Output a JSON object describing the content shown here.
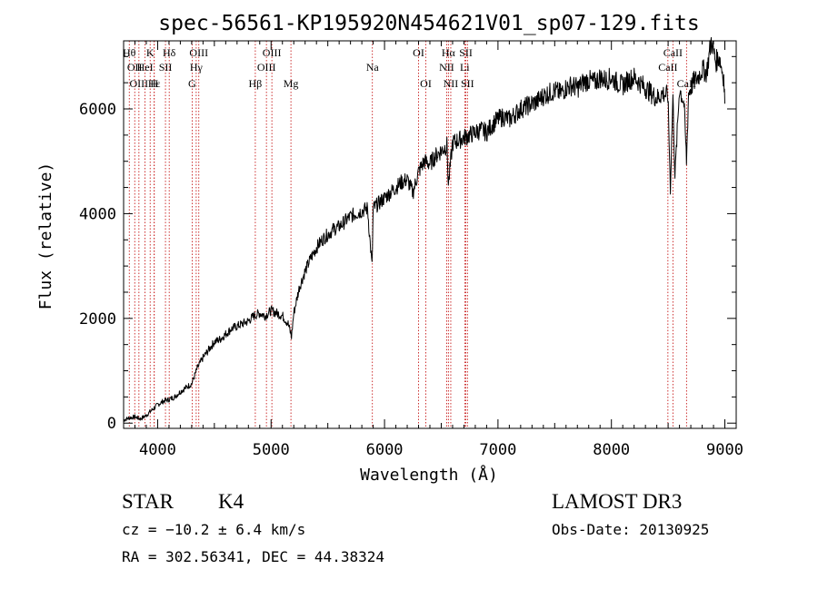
{
  "chart_data": {
    "type": "line",
    "title": "spec-56561-KP195920N454621V01_sp07-129.fits",
    "xlabel": "Wavelength (Å)",
    "ylabel": "Flux (relative)",
    "xlim": [
      3700,
      9100
    ],
    "ylim": [
      -100,
      7300
    ],
    "xticks": [
      4000,
      5000,
      6000,
      7000,
      8000,
      9000
    ],
    "xtick_labels": [
      "4000",
      "5000",
      "6000",
      "7000",
      "8000",
      "9000"
    ],
    "yticks": [
      0,
      2000,
      4000,
      6000
    ],
    "ytick_labels": [
      "0",
      "2000",
      "4000",
      "6000"
    ],
    "grid": false,
    "series": [
      {
        "name": "flux",
        "x": [
          3700,
          3750,
          3800,
          3850,
          3900,
          3950,
          4000,
          4050,
          4100,
          4150,
          4200,
          4250,
          4300,
          4350,
          4400,
          4450,
          4500,
          4550,
          4600,
          4650,
          4700,
          4750,
          4800,
          4850,
          4900,
          4950,
          5000,
          5050,
          5100,
          5150,
          5180,
          5200,
          5250,
          5300,
          5350,
          5400,
          5450,
          5500,
          5550,
          5600,
          5650,
          5700,
          5750,
          5800,
          5850,
          5890,
          5900,
          5950,
          6000,
          6050,
          6100,
          6150,
          6200,
          6250,
          6300,
          6350,
          6400,
          6450,
          6500,
          6550,
          6563,
          6600,
          6650,
          6700,
          6750,
          6800,
          6850,
          6900,
          6950,
          7000,
          7050,
          7100,
          7150,
          7200,
          7250,
          7300,
          7350,
          7400,
          7450,
          7500,
          7550,
          7600,
          7650,
          7700,
          7750,
          7800,
          7850,
          7900,
          7950,
          8000,
          8050,
          8100,
          8150,
          8200,
          8250,
          8300,
          8350,
          8400,
          8450,
          8498,
          8520,
          8542,
          8560,
          8600,
          8640,
          8662,
          8680,
          8720,
          8760,
          8800,
          8840,
          8880,
          8920,
          8950,
          8970,
          8990,
          9000
        ],
        "y": [
          60,
          100,
          120,
          80,
          150,
          250,
          350,
          420,
          450,
          500,
          600,
          680,
          750,
          1050,
          1250,
          1400,
          1550,
          1600,
          1700,
          1800,
          1850,
          1900,
          1950,
          2050,
          2100,
          2050,
          2150,
          2100,
          2050,
          1900,
          1650,
          2100,
          2600,
          2900,
          3150,
          3350,
          3500,
          3600,
          3700,
          3750,
          3850,
          3950,
          4000,
          4050,
          4100,
          3000,
          4100,
          4200,
          4300,
          4400,
          4500,
          4600,
          4650,
          4400,
          4800,
          5000,
          4950,
          5100,
          5200,
          5300,
          4550,
          5350,
          5400,
          5450,
          5500,
          5550,
          5600,
          5550,
          5700,
          5800,
          5850,
          5800,
          5900,
          6000,
          6050,
          6100,
          6150,
          6250,
          6300,
          6350,
          6300,
          6400,
          6450,
          6400,
          6500,
          6550,
          6500,
          6600,
          6550,
          6600,
          6500,
          6450,
          6550,
          6600,
          6500,
          6400,
          6300,
          6200,
          6300,
          6250,
          4500,
          6250,
          4700,
          6400,
          6100,
          5000,
          6300,
          6500,
          6600,
          6750,
          6700,
          7300,
          6900,
          7000,
          6800,
          6600,
          6100
        ]
      }
    ],
    "lines": [
      {
        "x": 3750,
        "label": "Hθ",
        "row": 0
      },
      {
        "x": 3798,
        "label": "OII",
        "row": 1
      },
      {
        "x": 3835,
        "label": "OIII",
        "row": 2
      },
      {
        "x": 3889,
        "label": "HeI",
        "row": 1
      },
      {
        "x": 3934,
        "label": "K",
        "row": 0
      },
      {
        "x": 3970,
        "label": "Hε",
        "row": 2
      },
      {
        "x": 3970,
        "label": "H",
        "row": 2
      },
      {
        "x": 4069,
        "label": "SII",
        "row": 1
      },
      {
        "x": 4102,
        "label": "Hδ",
        "row": 0
      },
      {
        "x": 4304,
        "label": "G",
        "row": 2
      },
      {
        "x": 4340,
        "label": "Hγ",
        "row": 1
      },
      {
        "x": 4363,
        "label": "OIII",
        "row": 0
      },
      {
        "x": 4861,
        "label": "Hβ",
        "row": 2
      },
      {
        "x": 4959,
        "label": "OIII",
        "row": 1
      },
      {
        "x": 5007,
        "label": "OIII",
        "row": 0
      },
      {
        "x": 5175,
        "label": "Mg",
        "row": 2
      },
      {
        "x": 5893,
        "label": "Na",
        "row": 1
      },
      {
        "x": 6300,
        "label": "OI",
        "row": 0
      },
      {
        "x": 6364,
        "label": "OI",
        "row": 2
      },
      {
        "x": 6548,
        "label": "NII",
        "row": 1
      },
      {
        "x": 6563,
        "label": "Hα",
        "row": 0
      },
      {
        "x": 6584,
        "label": "NII",
        "row": 2
      },
      {
        "x": 6707,
        "label": "Li",
        "row": 1
      },
      {
        "x": 6717,
        "label": "SII",
        "row": 0
      },
      {
        "x": 6731,
        "label": "SII",
        "row": 2
      },
      {
        "x": 8498,
        "label": "CaII",
        "row": 1
      },
      {
        "x": 8542,
        "label": "CaII",
        "row": 0
      },
      {
        "x": 8662,
        "label": "CaII",
        "row": 2
      }
    ]
  },
  "footer": {
    "object_class": "STAR",
    "subclass": "K4",
    "redshift": "cz = −10.2 ± 6.4 km/s",
    "coords": "RA = 302.56341, DEC =  44.38324",
    "survey": "LAMOST DR3",
    "obs_date": "Obs-Date: 20130925"
  }
}
